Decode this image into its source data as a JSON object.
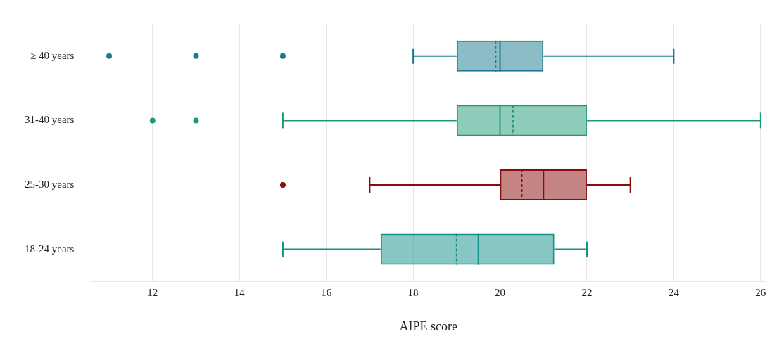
{
  "chart_data": {
    "type": "box",
    "orientation": "horizontal",
    "xlabel": "AIPE score",
    "categories": [
      "≥ 40 years",
      "31-40 years",
      "25-30 years",
      "18-24 years"
    ],
    "colors": [
      "#1a7a8c",
      "#1f9a78",
      "#8b0a0a",
      "#12908a"
    ],
    "boxes": [
      {
        "low": 18,
        "q1": 19,
        "median": 20,
        "q3": 21,
        "high": 24,
        "mean": 19.9,
        "outliers": [
          11,
          13,
          15
        ]
      },
      {
        "low": 15,
        "q1": 19,
        "median": 20,
        "q3": 22,
        "high": 26,
        "mean": 20.3,
        "outliers": [
          12,
          13
        ]
      },
      {
        "low": 17,
        "q1": 20,
        "median": 21,
        "q3": 22,
        "high": 23,
        "mean": 20.5,
        "outliers": [
          15
        ]
      },
      {
        "low": 15,
        "q1": 17.25,
        "median": 19.5,
        "q3": 21.25,
        "high": 22,
        "mean": 19
      }
    ],
    "xlim": [
      10.6,
      26.1
    ],
    "xticks": [
      12,
      14,
      16,
      18,
      20,
      22,
      24,
      26
    ],
    "grid": "x",
    "legend": false
  }
}
